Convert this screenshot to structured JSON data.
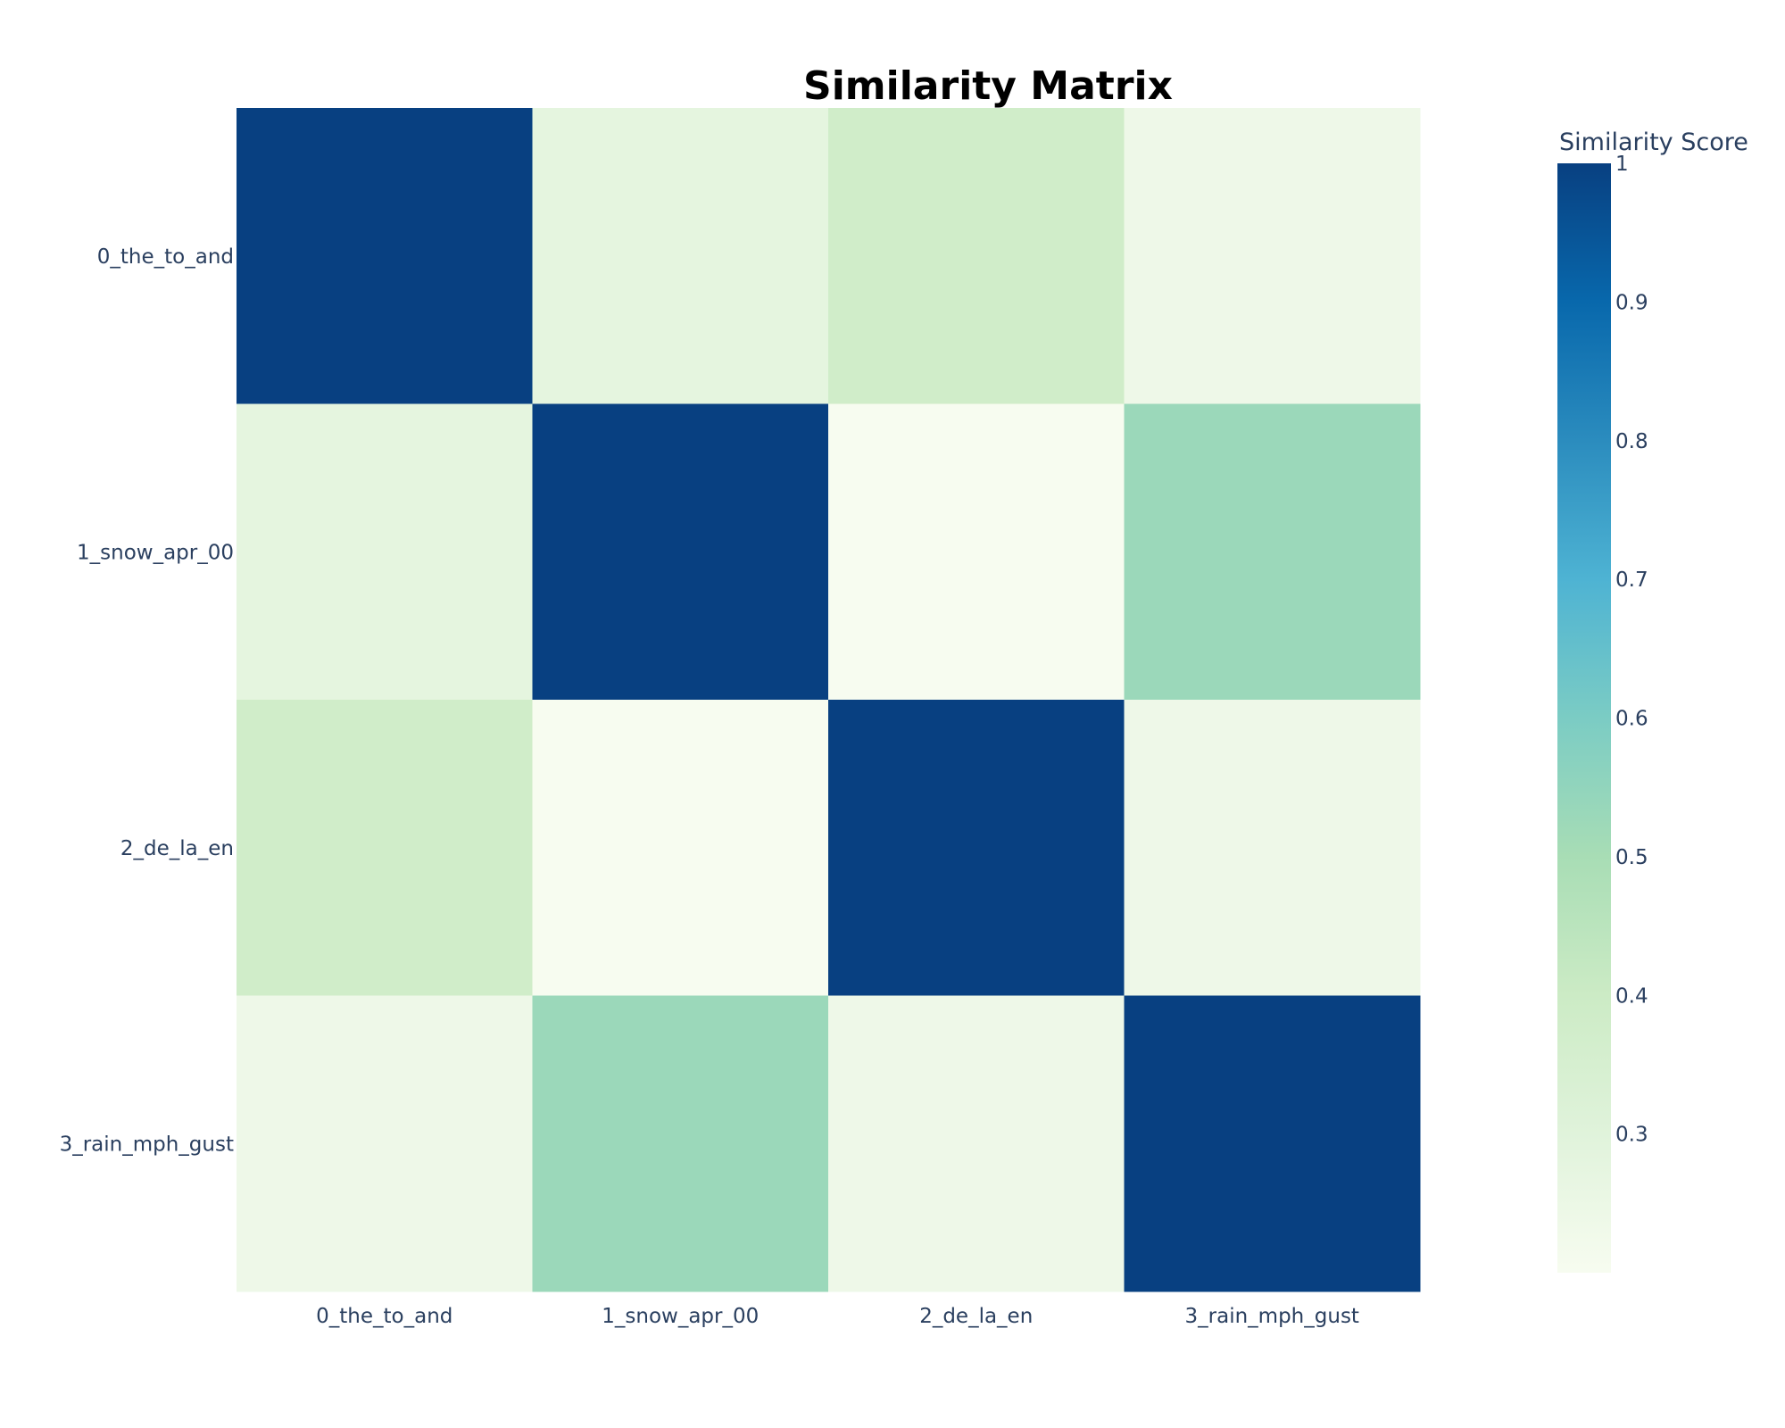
{
  "chart_data": {
    "type": "heatmap",
    "title": "Similarity Matrix",
    "x_categories": [
      "0_the_to_and",
      "1_snow_apr_00",
      "2_de_la_en",
      "3_rain_mph_gust"
    ],
    "y_categories": [
      "0_the_to_and",
      "1_snow_apr_00",
      "2_de_la_en",
      "3_rain_mph_gust"
    ],
    "z": [
      [
        1.0,
        0.28,
        0.38,
        0.24
      ],
      [
        0.28,
        1.0,
        0.2,
        0.53
      ],
      [
        0.38,
        0.2,
        1.0,
        0.24
      ],
      [
        0.24,
        0.53,
        0.24,
        1.0
      ]
    ],
    "colorbar": {
      "title": "Similarity Score",
      "range": [
        0.2,
        1.0
      ],
      "tick_values": [
        0.3,
        0.4,
        0.5,
        0.6,
        0.7,
        0.8,
        0.9,
        1
      ],
      "tick_labels": [
        "0.3",
        "0.4",
        "0.5",
        "0.6",
        "0.7",
        "0.8",
        "0.9",
        "1"
      ],
      "colorscale": [
        [
          0.0,
          "#f7fcf0"
        ],
        [
          0.125,
          "#e0f3db"
        ],
        [
          0.25,
          "#ccebc5"
        ],
        [
          0.375,
          "#a8ddb5"
        ],
        [
          0.5,
          "#7bccc4"
        ],
        [
          0.625,
          "#4eb3d3"
        ],
        [
          0.75,
          "#2b8cbe"
        ],
        [
          0.875,
          "#0868ac"
        ],
        [
          1.0,
          "#084081"
        ]
      ]
    }
  }
}
